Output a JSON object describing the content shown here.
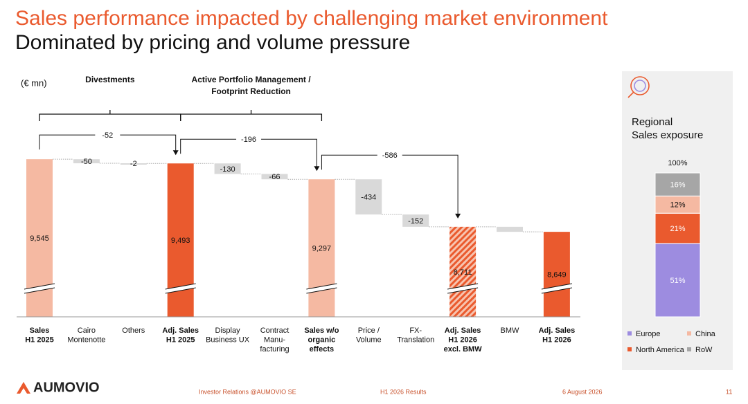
{
  "slide": {
    "title": "Sales performance impacted by challenging market environment",
    "subtitle": "Dominated by pricing and volume pressure",
    "footer": {
      "logo": "AUMOVIO",
      "left": "Investor Relations @AUMOVIO SE",
      "center": "H1 2026 Results",
      "date": "6 August 2026",
      "page": 11
    }
  },
  "chart_data": [
    {
      "type": "waterfall",
      "unit_label": "(€ mn)",
      "categories": [
        "Sales\nH1 2025",
        "Cairo\nMontenotte",
        "Others",
        "Adj. Sales\nH1 2025",
        "Display\nBusiness UX",
        "Contract\nManu-\nfacturing",
        "Sales w/o\norganic\neffects",
        "Price /\nVolume",
        "FX-\nTranslation",
        "Adj. Sales\nH1 2026\nexcl. BMW",
        "BMW",
        "Adj. Sales\nH1 2026"
      ],
      "measures": [
        "total",
        "relative",
        "relative",
        "total",
        "relative",
        "relative",
        "total",
        "relative",
        "relative",
        "total",
        "relative",
        "total"
      ],
      "values": [
        9545,
        -50,
        -2,
        9493,
        -130,
        -66,
        9297,
        -434,
        -152,
        8711,
        -62,
        8649
      ],
      "value_labels": [
        "9,545",
        "-50",
        "-2",
        "9,493",
        "-130",
        "-66",
        "9,297",
        "-434",
        "-152",
        "8,711",
        null,
        "8,649"
      ],
      "bar_colors": [
        "#f5b9a2",
        "#d9d9d9",
        "#d9d9d9",
        "#ea5a2e",
        "#d9d9d9",
        "#d9d9d9",
        "#f5b9a2",
        "#d9d9d9",
        "#d9d9d9",
        "#ea5a2e",
        "#d9d9d9",
        "#ea5a2e"
      ],
      "bar_styles": [
        "solid",
        "solid",
        "solid",
        "solid",
        "solid",
        "solid",
        "solid",
        "solid",
        "solid",
        "hatched",
        "solid",
        "solid"
      ],
      "ylim": [
        7600,
        9700
      ],
      "axis_break": true,
      "groups": [
        {
          "label": "Divestments",
          "from": 0,
          "to": 3
        },
        {
          "label": "Active Portfolio Management /\nFootprint Reduction",
          "from": 3,
          "to": 6
        }
      ],
      "bridges": [
        {
          "from": 0,
          "to": 3,
          "value": -52
        },
        {
          "from": 3,
          "to": 6,
          "value": -196
        },
        {
          "from": 6,
          "to": 9,
          "value": -586
        }
      ]
    },
    {
      "type": "stacked_bar",
      "title": "Regional\nSales exposure",
      "total": 100,
      "total_label": "100%",
      "series": [
        {
          "name": "Europe",
          "color": "#9d8ce0",
          "values": [
            51
          ],
          "value_labels": [
            "51%"
          ]
        },
        {
          "name": "North America",
          "color": "#ea5a2e",
          "values": [
            21
          ],
          "value_labels": [
            "21%"
          ]
        },
        {
          "name": "China",
          "color": "#f5b9a2",
          "values": [
            12
          ],
          "value_labels": [
            "12%"
          ]
        },
        {
          "name": "RoW",
          "color": "#a6a6a6",
          "values": [
            16
          ],
          "value_labels": [
            "16%"
          ]
        }
      ],
      "ylim": [
        0,
        100
      ]
    }
  ]
}
